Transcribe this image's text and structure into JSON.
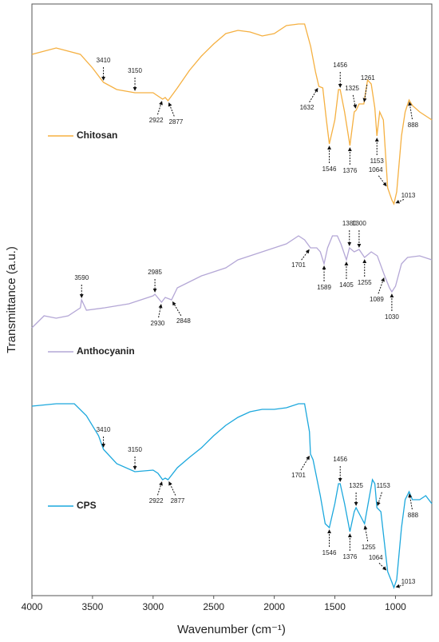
{
  "chart_data": {
    "type": "line",
    "xlabel": "Wavenumber (cm⁻¹)",
    "ylabel": "Transmittance (a.u.)",
    "xlim": [
      4000,
      700
    ],
    "xticks": [
      4000,
      3500,
      3000,
      2500,
      2000,
      1500,
      1000
    ],
    "ylim": [
      0,
      74
    ],
    "series": [
      {
        "name": "Chitosan",
        "color": "#f5b041",
        "x": [
          4000,
          3800,
          3600,
          3500,
          3410,
          3300,
          3150,
          3000,
          2922,
          2900,
          2877,
          2800,
          2700,
          2600,
          2500,
          2400,
          2300,
          2200,
          2100,
          2000,
          1900,
          1800,
          1750,
          1700,
          1660,
          1632,
          1600,
          1570,
          1546,
          1500,
          1470,
          1456,
          1420,
          1376,
          1340,
          1325,
          1300,
          1261,
          1230,
          1200,
          1170,
          1153,
          1130,
          1100,
          1064,
          1030,
          1013,
          990,
          950,
          920,
          888,
          860,
          800,
          700
        ],
        "values": [
          67.7,
          68.5,
          67.7,
          66,
          64.2,
          63.3,
          62.9,
          62.9,
          62.1,
          62.3,
          61.9,
          63.5,
          65.7,
          67.5,
          69,
          70.3,
          70.7,
          70.5,
          70,
          70.3,
          71.3,
          71.5,
          71.5,
          68.7,
          65.5,
          63.7,
          63.5,
          59.5,
          56.5,
          59.5,
          63.3,
          63.3,
          60.5,
          56.3,
          60.5,
          60.7,
          61.5,
          61.5,
          64.5,
          64,
          61,
          57.5,
          60.5,
          59.5,
          51,
          49.5,
          49,
          50.5,
          57.5,
          60.5,
          62,
          61.3,
          60.5,
          59.5
        ],
        "peaks": [
          3410,
          3150,
          2922,
          2877,
          1632,
          1546,
          1456,
          1376,
          1325,
          1261,
          1153,
          888,
          1064,
          1013
        ]
      },
      {
        "name": "Anthocyanin",
        "color": "#b4a7d6",
        "x": [
          4000,
          3900,
          3800,
          3700,
          3600,
          3590,
          3550,
          3400,
          3200,
          3000,
          2985,
          2930,
          2900,
          2848,
          2800,
          2600,
          2400,
          2300,
          2200,
          2000,
          1900,
          1800,
          1750,
          1701,
          1650,
          1620,
          1589,
          1560,
          1520,
          1480,
          1450,
          1405,
          1380,
          1340,
          1300,
          1255,
          1200,
          1150,
          1089,
          1050,
          1030,
          1000,
          950,
          900,
          800,
          700
        ],
        "values": [
          33.5,
          35,
          34.7,
          35,
          36,
          37,
          35.7,
          36,
          36.5,
          37.5,
          37.7,
          36.7,
          37.3,
          37,
          38.5,
          40,
          41,
          42,
          42.5,
          43.5,
          44,
          45,
          44.5,
          43.5,
          43.5,
          43,
          41.5,
          43.5,
          45,
          45,
          44,
          42,
          43.5,
          43,
          43.3,
          42.3,
          43,
          42.5,
          40,
          38.5,
          38,
          38.7,
          41.5,
          42.3,
          42.5,
          42
        ],
        "peaks": [
          3590,
          2985,
          2930,
          2848,
          1701,
          1589,
          1380,
          1405,
          1300,
          1255,
          1089,
          1030
        ]
      },
      {
        "name": "CPS",
        "color": "#1ca8dd",
        "x": [
          4000,
          3800,
          3650,
          3550,
          3450,
          3410,
          3300,
          3150,
          3000,
          2960,
          2922,
          2900,
          2877,
          2800,
          2700,
          2600,
          2500,
          2400,
          2300,
          2200,
          2100,
          2000,
          1900,
          1800,
          1750,
          1710,
          1701,
          1680,
          1620,
          1580,
          1546,
          1500,
          1470,
          1456,
          1420,
          1376,
          1340,
          1325,
          1290,
          1255,
          1220,
          1190,
          1170,
          1153,
          1120,
          1064,
          1030,
          1013,
          990,
          950,
          920,
          888,
          860,
          800,
          750,
          700
        ],
        "values": [
          23.7,
          24,
          24,
          22.5,
          20,
          18.3,
          16.5,
          15.5,
          15.7,
          15.3,
          14.5,
          14.7,
          14.5,
          16,
          17.3,
          18.5,
          20,
          21.3,
          22.3,
          23,
          23.3,
          23.3,
          23.5,
          24,
          24,
          20.5,
          17.7,
          17,
          12.5,
          9,
          8.5,
          11.5,
          14,
          14,
          11.5,
          8,
          10.5,
          11,
          10,
          9,
          12,
          14.5,
          14,
          11,
          10.5,
          3,
          1.7,
          1,
          2,
          8.5,
          12,
          13,
          12,
          12,
          12.5,
          11.5
        ],
        "peaks": [
          3410,
          3150,
          2922,
          2877,
          1701,
          1546,
          1456,
          1376,
          1325,
          1255,
          1153,
          888,
          1064,
          1013
        ]
      }
    ]
  }
}
